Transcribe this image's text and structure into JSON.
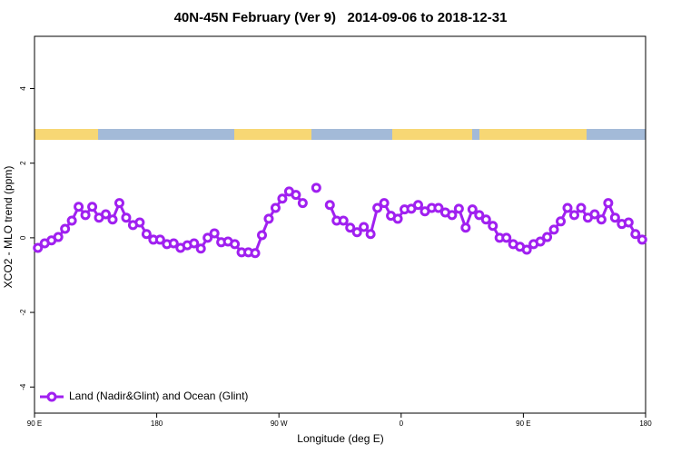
{
  "chart_data": {
    "type": "line",
    "title": "40N-45N February (Ver 9)   2014-09-06 to 2018-12-31",
    "x_label": "Longitude (deg E)",
    "y_label": "XCO2 - MLO trend (ppm)",
    "xlim": [
      90,
      540
    ],
    "ylim": [
      -4.7,
      5.4
    ],
    "xticks": [
      {
        "value": 90,
        "label": "90 E"
      },
      180,
      {
        "value": 270,
        "label": "90 W"
      },
      {
        "value": 360,
        "label": "0"
      },
      {
        "value": 450,
        "label": "90 E"
      },
      {
        "value": 540,
        "label": "180"
      }
    ],
    "yticks": [
      -4,
      -2,
      0,
      2,
      4
    ],
    "legend": "bottomleft",
    "grid": false,
    "x": [
      92.5,
      97.5,
      102.5,
      107.5,
      112.5,
      117.5,
      122.5,
      127.5,
      132.5,
      137.5,
      142.5,
      147.5,
      152.5,
      157.5,
      162.5,
      167.5,
      172.5,
      177.5,
      182.5,
      187.5,
      192.5,
      197.5,
      202.5,
      207.5,
      212.5,
      217.5,
      222.5,
      227.5,
      232.5,
      237.5,
      242.5,
      247.5,
      252.5,
      257.5,
      262.5,
      267.5,
      272.5,
      277.5,
      282.5,
      287.5,
      292.5,
      297.5,
      302.5,
      307.5,
      312.5,
      317.5,
      322.5,
      327.5,
      332.5,
      337.5,
      342.5,
      347.5,
      352.5,
      357.5,
      362.5,
      367.5,
      372.5,
      377.5,
      382.5,
      387.5,
      392.5,
      397.5,
      402.5,
      407.5,
      412.5,
      417.5,
      422.5,
      427.5,
      432.5,
      437.5,
      442.5,
      447.5,
      452.5,
      457.5,
      462.5,
      467.5,
      472.5,
      477.5,
      482.5,
      487.5,
      492.5,
      497.5,
      502.5,
      507.5,
      512.5,
      517.5,
      522.5,
      527.5,
      532.5,
      537.5
    ],
    "series": [
      {
        "name": "Land (Nadir&Glint) and Ocean (Glint)",
        "color": "#a020f0",
        "values": [
          -0.27,
          -0.15,
          -0.07,
          0.02,
          0.24,
          0.46,
          0.83,
          0.61,
          0.83,
          0.54,
          0.63,
          0.49,
          0.93,
          0.54,
          0.34,
          0.41,
          0.1,
          -0.05,
          -0.05,
          -0.17,
          -0.15,
          -0.27,
          -0.2,
          -0.15,
          -0.29,
          0,
          0.12,
          -0.12,
          -0.1,
          -0.17,
          -0.39,
          -0.39,
          -0.41,
          0.07,
          0.51,
          0.8,
          1.05,
          1.24,
          1.15,
          0.93,
          null,
          1.34,
          null,
          0.88,
          0.46,
          0.46,
          0.27,
          0.15,
          0.29,
          0.1,
          0.8,
          0.93,
          0.59,
          0.51,
          0.76,
          0.78,
          0.88,
          0.71,
          0.8,
          0.8,
          0.68,
          0.61,
          0.78,
          0.27,
          0.76,
          0.61,
          0.49,
          0.32,
          0,
          0,
          -0.17,
          -0.24,
          -0.32,
          -0.17,
          -0.1,
          0.02,
          0.22,
          0.44,
          0.8,
          0.61,
          0.8,
          0.54,
          0.63,
          0.49,
          0.93,
          0.54,
          0.37,
          0.41,
          0.1,
          -0.05
        ]
      }
    ]
  }
}
